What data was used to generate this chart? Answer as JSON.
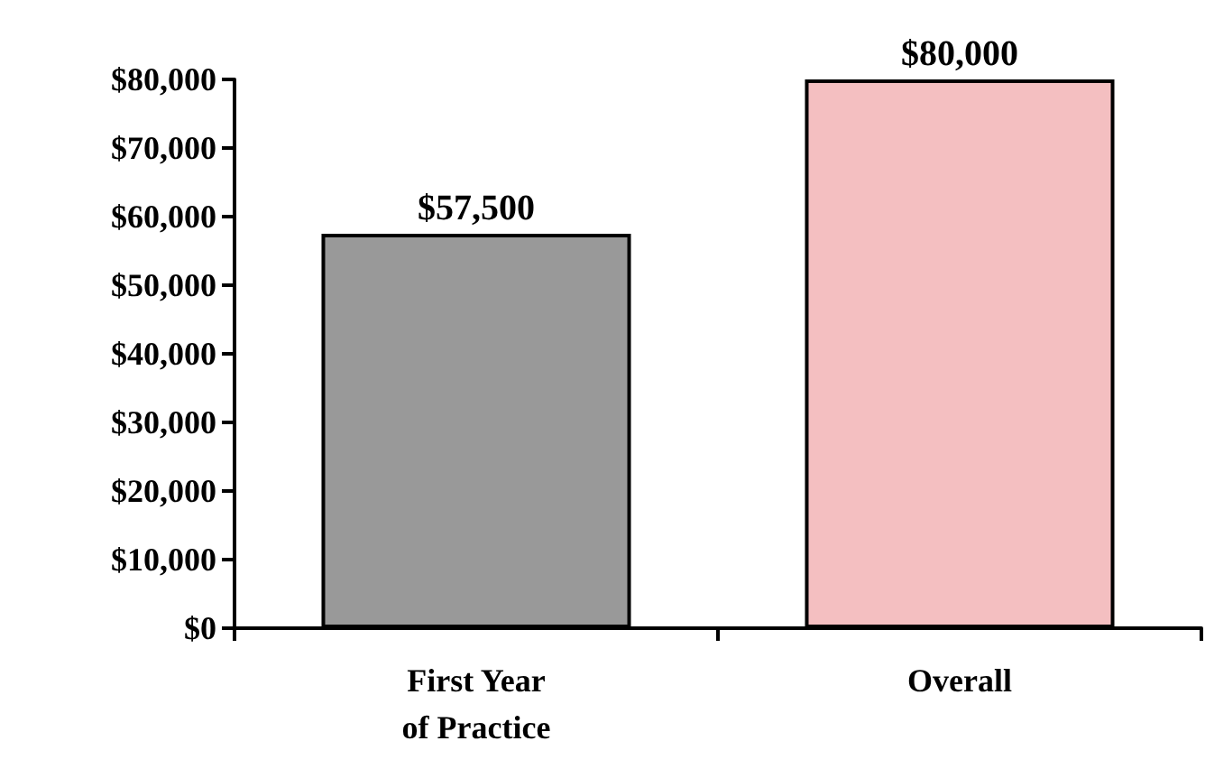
{
  "chart_data": {
    "type": "bar",
    "categories": [
      "First Year\nof Practice",
      "Overall"
    ],
    "values": [
      57500,
      80000
    ],
    "colors": [
      "#999999",
      "#f4bfc1"
    ],
    "value_labels": [
      "$57,500",
      "$80,000"
    ],
    "ylim": [
      0,
      80000
    ],
    "yticks": [
      {
        "value": 0,
        "label": "$0"
      },
      {
        "value": 10000,
        "label": "$10,000"
      },
      {
        "value": 20000,
        "label": "$20,000"
      },
      {
        "value": 30000,
        "label": "$30,000"
      },
      {
        "value": 40000,
        "label": "$40,000"
      },
      {
        "value": 50000,
        "label": "$50,000"
      },
      {
        "value": 60000,
        "label": "$60,000"
      },
      {
        "value": 70000,
        "label": "$70,000"
      },
      {
        "value": 80000,
        "label": "$80,000"
      }
    ],
    "grid": false
  }
}
